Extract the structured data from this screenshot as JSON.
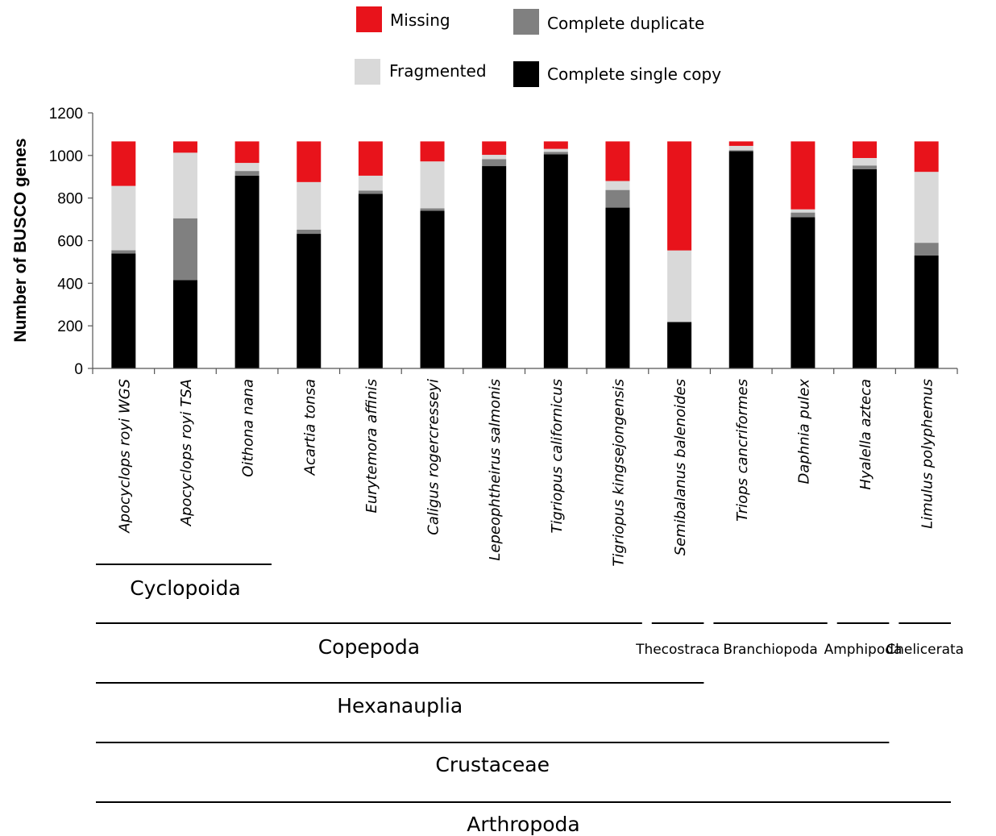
{
  "chart_data": {
    "type": "bar",
    "stacked": true,
    "ylabel": "Number of BUSCO genes",
    "ylim": [
      0,
      1200
    ],
    "yticks": [
      0,
      200,
      400,
      600,
      800,
      1000,
      1200
    ],
    "grid": false,
    "legend_position": "top",
    "categories": [
      "Apocyclops royi WGS",
      "Apocyclops royi TSA",
      "Oithona nana",
      "Acartia tonsa",
      "Eurytemora affinis",
      "Caligus rogercresseyi",
      "Lepeophtheirus  salmonis",
      "Tigriopus californicus",
      "Tigriopus kingsejongensis",
      "Semibalanus balenoides",
      "Triops cancriformes",
      "Daphnia pulex",
      "Hyalella azteca",
      "Limulus polyphemus"
    ],
    "series": [
      {
        "name": "Complete single copy",
        "color": "#000000",
        "values": [
          540,
          415,
          905,
          632,
          820,
          740,
          950,
          1005,
          755,
          218,
          1020,
          710,
          935,
          530
        ]
      },
      {
        "name": "Complete duplicate",
        "color": "#808080",
        "values": [
          15,
          290,
          22,
          20,
          15,
          12,
          33,
          12,
          83,
          0,
          5,
          22,
          18,
          60
        ]
      },
      {
        "name": "Fragmented",
        "color": "#d9d9d9",
        "values": [
          302,
          308,
          38,
          223,
          70,
          220,
          20,
          14,
          42,
          336,
          20,
          15,
          35,
          333
        ]
      },
      {
        "name": "Missing",
        "color": "#e8131b",
        "values": [
          209,
          53,
          101,
          191,
          161,
          94,
          63,
          35,
          186,
          512,
          21,
          319,
          78,
          143
        ]
      }
    ],
    "legend": [
      {
        "label": "Missing",
        "color": "#e8131b"
      },
      {
        "label": "Complete duplicate",
        "color": "#808080"
      },
      {
        "label": "Fragmented",
        "color": "#d9d9d9"
      },
      {
        "label": "Complete single copy",
        "color": "#000000"
      }
    ],
    "groups": [
      {
        "label": "Cyclopoida",
        "from": 0,
        "to": 2,
        "size": "lg",
        "lineRow": 0,
        "labelRow": 0
      },
      {
        "label": "Copepoda",
        "from": 0,
        "to": 8,
        "size": "lg",
        "lineRow": 1,
        "labelRow": 1
      },
      {
        "label": "Thecostraca",
        "from": 9,
        "to": 9,
        "size": "sm",
        "lineRow": 1,
        "labelRow": 1
      },
      {
        "label": "Branchiopoda",
        "from": 10,
        "to": 11,
        "size": "sm",
        "lineRow": 1,
        "labelRow": 1
      },
      {
        "label": "Amphipoda",
        "from": 12,
        "to": 12,
        "size": "sm",
        "lineRow": 1,
        "labelRow": 1
      },
      {
        "label": "Chelicerata",
        "from": 13,
        "to": 13,
        "size": "sm",
        "lineRow": 1,
        "labelRow": 1
      },
      {
        "label": "Hexanauplia",
        "from": 0,
        "to": 9,
        "size": "lg",
        "lineRow": 2,
        "labelRow": 2
      },
      {
        "label": "Crustaceae",
        "from": 0,
        "to": 12,
        "size": "lg",
        "lineRow": 3,
        "labelRow": 3
      },
      {
        "label": "Arthropoda",
        "from": 0,
        "to": 13,
        "size": "lg",
        "lineRow": 4,
        "labelRow": 4
      }
    ]
  }
}
